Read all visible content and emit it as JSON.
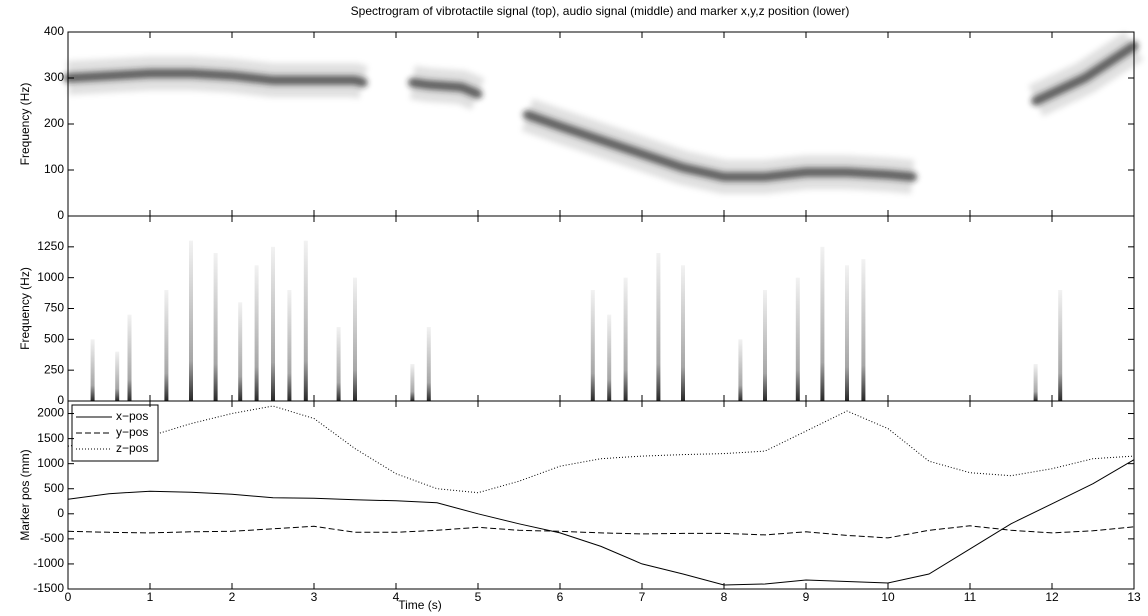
{
  "chart_data": [
    {
      "type": "spectrogram",
      "title": "Spectrogram of vibrotactile signal (top), audio signal (middle) and marker x,y,z position (lower)",
      "ylabel": "Frequency (Hz)",
      "x": [
        0,
        0.5,
        1,
        1.5,
        2,
        2.5,
        3,
        3.5,
        3.6,
        3.9,
        4.2,
        4.4,
        4.8,
        5.0,
        5.3,
        5.6,
        6,
        6.5,
        7,
        7.5,
        8,
        8.5,
        9,
        9.5,
        10,
        10.3,
        11,
        11.8,
        12.4,
        13
      ],
      "values": [
        300,
        305,
        310,
        310,
        305,
        295,
        295,
        295,
        290,
        null,
        290,
        285,
        280,
        265,
        null,
        220,
        195,
        165,
        135,
        105,
        85,
        85,
        95,
        95,
        90,
        85,
        null,
        250,
        300,
        370
      ],
      "color": "#222222",
      "xlim": [
        0,
        13
      ],
      "xticks": [
        0,
        1,
        2,
        3,
        4,
        5,
        6,
        7,
        8,
        9,
        10,
        11,
        12,
        13
      ],
      "ylim": [
        0,
        400
      ],
      "yticks": [
        0,
        100,
        200,
        300,
        400
      ]
    },
    {
      "type": "streaks",
      "ylabel": "Frequency (Hz)",
      "x": [
        0.3,
        0.6,
        0.75,
        1.2,
        1.5,
        1.8,
        2.1,
        2.3,
        2.5,
        2.7,
        2.9,
        3.3,
        3.5,
        4.2,
        4.4,
        6.4,
        6.6,
        6.8,
        7.2,
        7.5,
        8.2,
        8.5,
        8.9,
        9.2,
        9.5,
        9.7,
        11.8,
        12.1
      ],
      "values": [
        500,
        400,
        700,
        900,
        1300,
        1200,
        800,
        1100,
        1250,
        900,
        1300,
        600,
        1000,
        300,
        600,
        900,
        700,
        1000,
        1200,
        1100,
        500,
        900,
        1000,
        1250,
        1100,
        1150,
        300,
        900
      ],
      "color": "#333333",
      "xlim": [
        0,
        13
      ],
      "xticks": [
        0,
        1,
        2,
        3,
        4,
        5,
        6,
        7,
        8,
        9,
        10,
        11,
        12,
        13
      ],
      "ylim": [
        0,
        1500
      ],
      "yticks": [
        0,
        250,
        500,
        750,
        1000,
        1250
      ]
    },
    {
      "type": "line",
      "ylabel": "Marker pos (mm)",
      "xlabel": "Time (s)",
      "x": [
        0,
        0.5,
        1,
        1.5,
        2,
        2.5,
        3,
        3.5,
        4,
        4.5,
        5,
        5.5,
        6,
        6.5,
        7,
        7.5,
        8,
        8.5,
        9,
        9.5,
        10,
        10.5,
        11,
        11.5,
        12,
        12.5,
        13
      ],
      "series": [
        {
          "name": "x−pos",
          "color": "#000000",
          "dash": "solid",
          "values": [
            290,
            400,
            450,
            430,
            390,
            320,
            310,
            280,
            260,
            220,
            0,
            -200,
            -380,
            -650,
            -1000,
            -1200,
            -1420,
            -1400,
            -1320,
            -1350,
            -1380,
            -1200,
            -700,
            -200,
            200,
            600,
            1080
          ]
        },
        {
          "name": "y−pos",
          "color": "#000000",
          "dash": "dashed",
          "values": [
            -350,
            -370,
            -380,
            -360,
            -350,
            -300,
            -250,
            -370,
            -370,
            -330,
            -270,
            -330,
            -350,
            -380,
            -400,
            -390,
            -390,
            -420,
            -360,
            -430,
            -480,
            -330,
            -240,
            -330,
            -380,
            -340,
            -260
          ]
        },
        {
          "name": "z−pos",
          "color": "#000000",
          "dash": "dotted",
          "values": [
            1350,
            1450,
            1550,
            1800,
            2000,
            2150,
            1900,
            1300,
            800,
            500,
            420,
            650,
            950,
            1100,
            1150,
            1180,
            1200,
            1250,
            1650,
            2050,
            1700,
            1050,
            820,
            760,
            900,
            1100,
            1150
          ]
        }
      ],
      "legend": "upper left",
      "xlim": [
        0,
        13
      ],
      "xticks": [
        0,
        1,
        2,
        3,
        4,
        5,
        6,
        7,
        8,
        9,
        10,
        11,
        12,
        13
      ],
      "ylim": [
        -1500,
        2250
      ],
      "yticks": [
        -1500,
        -1000,
        -500,
        0,
        500,
        1000,
        1500,
        2000
      ]
    }
  ]
}
